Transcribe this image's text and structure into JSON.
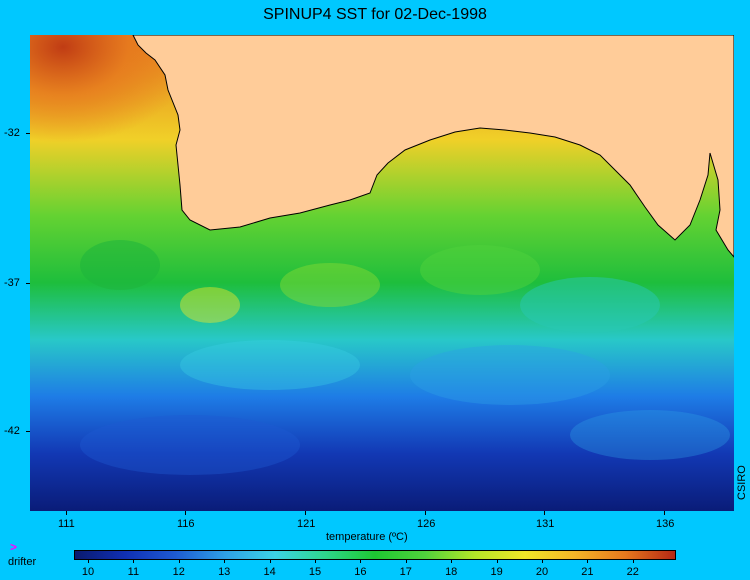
{
  "title": "SPINUP4 SST for 02-Dec-1998",
  "map": {
    "type": "sea-surface-temperature",
    "land_color": "#ffcc99",
    "lat_ticks": [
      "-32",
      "-37",
      "-42"
    ],
    "lon_ticks": [
      "111",
      "116",
      "121",
      "126",
      "131",
      "136"
    ]
  },
  "colorbar": {
    "title": "temperature (ºC)",
    "ticks": [
      "10",
      "11",
      "12",
      "13",
      "14",
      "15",
      "16",
      "17",
      "18",
      "19",
      "20",
      "21",
      "22"
    ],
    "colors": [
      "#0a1a6e",
      "#1030b4",
      "#1e5ad2",
      "#2ea0e6",
      "#3cd2e6",
      "#2ed68c",
      "#1ec832",
      "#50d23c",
      "#b4e628",
      "#f0e628",
      "#f5b428",
      "#e6781e",
      "#b42814"
    ]
  },
  "legend": {
    "marker": ">",
    "label": "drifter"
  },
  "credit": "CSIRO"
}
